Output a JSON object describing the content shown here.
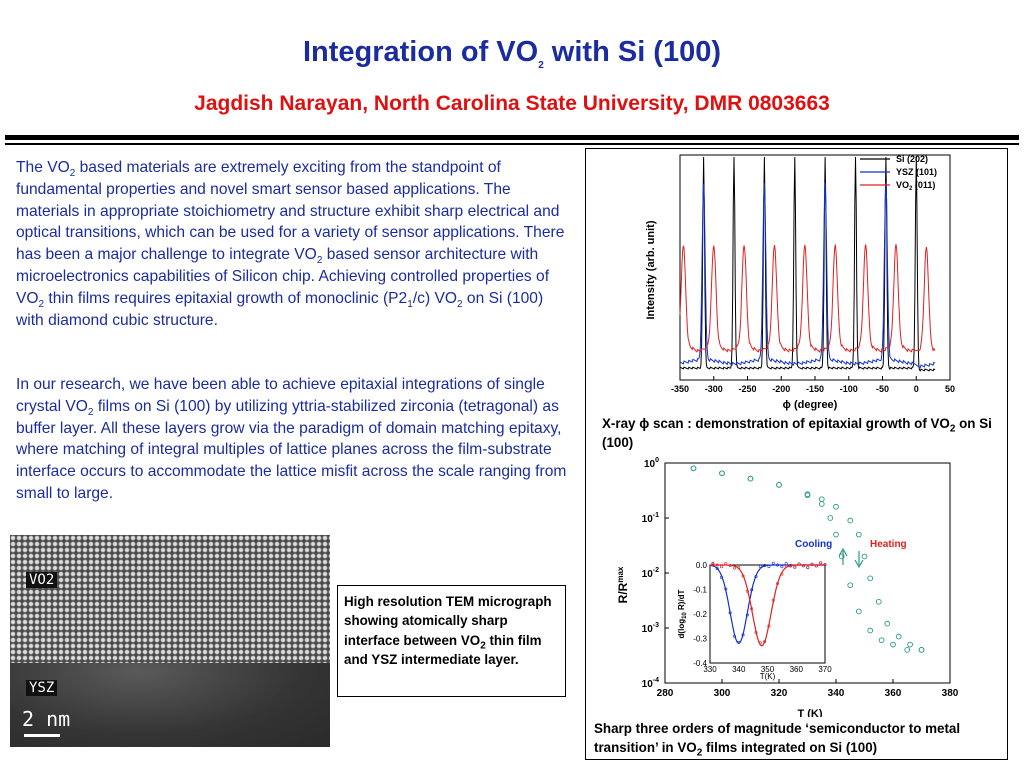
{
  "header": {
    "title_main": "Integration of VO",
    "title_sub": "2",
    "title_end": " with Si (100)",
    "author_line": "Jagdish Narayan, North Carolina State University, DMR 0803663"
  },
  "paragraph1": {
    "t1": "The VO",
    "s1": "2",
    "t2": " based materials are extremely exciting from the standpoint of fundamental properties  and novel smart sensor based applications. The materials in appropriate stoichiometry and structure exhibit sharp electrical and optical transitions, which can be used for a variety of sensor applications. There has been a major challenge to integrate VO",
    "s2": "2",
    "t3": " based sensor architecture with microelectronics capabilities of Silicon chip. Achieving controlled properties of VO",
    "s3": "2",
    "t4": " thin films requires epitaxial growth of monoclinic (P2",
    "s4": "1",
    "t5": "/c) VO",
    "s5": "2",
    "t6": " on Si (100) with diamond cubic structure."
  },
  "paragraph2": {
    "t1": "In our research, we have been able to achieve epitaxial integrations of single crystal VO",
    "s1": "2",
    "t2": " films on Si (100) by utilizing yttria-stabilized zirconia (tetragonal) as buffer layer. All these layers grow via the paradigm of domain matching epitaxy, where matching of integral multiples of lattice planes across the film-substrate interface occurs to accommodate the lattice misfit across the scale ranging from small to large."
  },
  "tem_image": {
    "label_top": "VO2",
    "label_bottom": "YSZ",
    "scale_text": "2 nm"
  },
  "tem_caption": {
    "t1": "High resolution TEM micrograph showing atomically sharp interface between VO",
    "s1": "2",
    "t2": " thin film and YSZ intermediate layer."
  },
  "xrd_caption": {
    "t1": "X-ray ",
    "phi": "ϕ",
    "t2": " scan : demonstration of epitaxial growth of VO",
    "s1": "2",
    "t3": " on Si (100)"
  },
  "rt_caption": {
    "t1": "Sharp three orders of magnitude ‘semiconductor to metal transition’ in VO",
    "s1": "2",
    "t2": " films integrated on Si (100)"
  },
  "colors": {
    "title_blue": "#1a2ca0",
    "author_red": "#e01010",
    "si": "#000000",
    "ysz": "#1030d0",
    "vo2": "#e02020",
    "rt": "#2a9a8a"
  },
  "chart_data": [
    {
      "type": "line",
      "title": "",
      "xlabel": "ϕ (degree)",
      "ylabel": "Intensity (arb. unit)",
      "xlim": [
        -350,
        50
      ],
      "xticks": [
        "-350",
        "-300",
        "-250",
        "-200",
        "-150",
        "-100",
        "-50",
        "0",
        "50"
      ],
      "legend_position": "top-right",
      "series": [
        {
          "name": "Si (202)",
          "peaks": [
            -315,
            -270,
            -225,
            -180,
            -135,
            -90,
            -45,
            0
          ]
        },
        {
          "name": "YSZ (101)",
          "peaks": [
            -315,
            -225,
            -135,
            -45
          ]
        },
        {
          "name": "VO2 (011)",
          "peaks": [
            -345,
            -300,
            -255,
            -210,
            -165,
            -120,
            -75,
            -30,
            15
          ]
        }
      ],
      "legend_labels": {
        "si": "Si (202)",
        "ysz": "YSZ (101)",
        "vo2_a": "VO",
        "vo2_b": "2",
        "vo2_c": " (011)"
      }
    },
    {
      "type": "scatter",
      "title": "",
      "xlabel": "T (K)",
      "ylabel": "R/R",
      "ylabel_sub": "max",
      "xlim": [
        280,
        380
      ],
      "xticks": [
        "280",
        "300",
        "320",
        "340",
        "360",
        "380"
      ],
      "yscale": "log",
      "ylim": [
        0.0001,
        1
      ],
      "yticks": [
        "10",
        "10",
        "10",
        "10",
        "10"
      ],
      "yticks_exp": [
        "0",
        "-1",
        "-2",
        "-3",
        "-4"
      ],
      "annotations": [
        "Cooling",
        "Heating"
      ],
      "series": [
        {
          "name": "Cooling",
          "x": [
            290,
            300,
            310,
            320,
            330,
            335,
            338,
            340,
            342,
            345,
            348,
            352,
            356,
            360,
            365,
            370
          ],
          "y": [
            0.8,
            0.65,
            0.52,
            0.4,
            0.26,
            0.18,
            0.1,
            0.05,
            0.02,
            0.006,
            0.002,
            0.0009,
            0.0006,
            0.0005,
            0.0004,
            0.0004
          ]
        },
        {
          "name": "Heating",
          "x": [
            290,
            300,
            310,
            320,
            330,
            335,
            340,
            345,
            348,
            350,
            352,
            355,
            358,
            362,
            366,
            370
          ],
          "y": [
            0.8,
            0.65,
            0.52,
            0.4,
            0.27,
            0.22,
            0.16,
            0.09,
            0.05,
            0.02,
            0.008,
            0.003,
            0.0012,
            0.0007,
            0.0005,
            0.0004
          ]
        }
      ],
      "inset": {
        "ylabel": "d(log",
        "ylabel_sub": "10",
        "ylabel_end": " R)/dT",
        "xlabel": "T(K)",
        "xticks": [
          "330",
          "340",
          "350",
          "360",
          "370"
        ],
        "yticks": [
          "0.0",
          "-0.1",
          "-0.2",
          "-0.3",
          "-0.4"
        ],
        "xlim": [
          330,
          370
        ],
        "ylim": [
          -0.4,
          0.0
        ],
        "cooling_min": {
          "x": 340,
          "y": -0.32
        },
        "heating_min": {
          "x": 348,
          "y": -0.33
        }
      }
    }
  ]
}
